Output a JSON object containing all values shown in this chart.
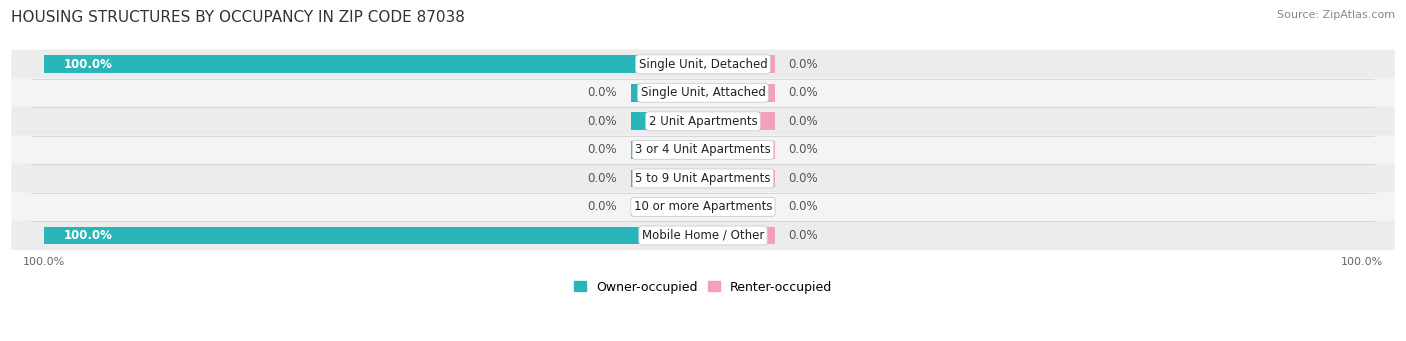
{
  "title": "HOUSING STRUCTURES BY OCCUPANCY IN ZIP CODE 87038",
  "source": "Source: ZipAtlas.com",
  "categories": [
    "Single Unit, Detached",
    "Single Unit, Attached",
    "2 Unit Apartments",
    "3 or 4 Unit Apartments",
    "5 to 9 Unit Apartments",
    "10 or more Apartments",
    "Mobile Home / Other"
  ],
  "owner_values": [
    100.0,
    0.0,
    0.0,
    0.0,
    0.0,
    0.0,
    100.0
  ],
  "renter_values": [
    0.0,
    0.0,
    0.0,
    0.0,
    0.0,
    0.0,
    0.0
  ],
  "owner_color": "#2ab5ba",
  "renter_color": "#f4a0b8",
  "row_bg_colors": [
    "#ececec",
    "#f4f4f4",
    "#ececec",
    "#f4f4f4",
    "#ececec",
    "#f4f4f4",
    "#ececec"
  ],
  "title_fontsize": 11,
  "source_fontsize": 8,
  "bar_label_fontsize": 8.5,
  "category_fontsize": 8.5,
  "legend_fontsize": 9,
  "axis_label_fontsize": 8
}
